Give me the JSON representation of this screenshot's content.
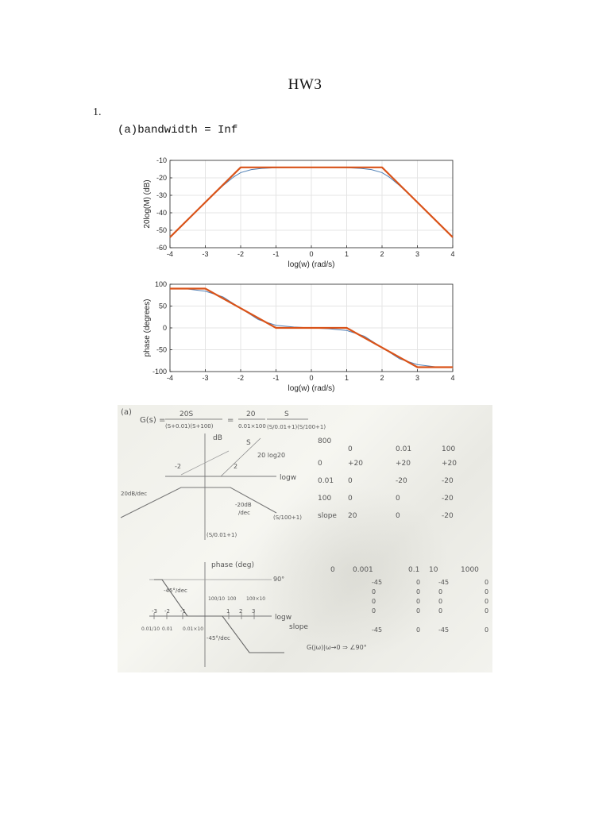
{
  "document": {
    "title": "HW3",
    "question_number": "1.",
    "part_a": "(a)bandwidth = Inf"
  },
  "chart_data": [
    {
      "type": "line",
      "xlabel": "log(w) (rad/s)",
      "ylabel": "20log(M) (dB)",
      "xlim": [
        -4,
        4
      ],
      "ylim": [
        -60,
        -10
      ],
      "xticks": [
        "-4",
        "-3",
        "-2",
        "-1",
        "0",
        "1",
        "2",
        "3",
        "4"
      ],
      "yticks": [
        "-10",
        "-20",
        "-30",
        "-40",
        "-50",
        "-60"
      ],
      "grid": true,
      "colors": {
        "asymptote": "#d95319",
        "exact": "#4f7fb5"
      },
      "series": [
        {
          "x": [
            -4,
            -2,
            2,
            4
          ],
          "y": [
            -54,
            -14,
            -14,
            -54
          ]
        },
        {
          "x": [
            -4,
            -3,
            -2.5,
            -2.2,
            -2,
            -1.7,
            -1.4,
            -1,
            0,
            1,
            1.4,
            1.7,
            2,
            2.2,
            2.5,
            3,
            4
          ],
          "y": [
            -54,
            -34,
            -24.5,
            -19.5,
            -17,
            -15.3,
            -14.6,
            -14.2,
            -14,
            -14.2,
            -14.6,
            -15.3,
            -17,
            -19.5,
            -24.5,
            -34,
            -54
          ]
        }
      ]
    },
    {
      "type": "line",
      "xlabel": "log(w) (rad/s)",
      "ylabel": "phase (degrees)",
      "xlim": [
        -4,
        4
      ],
      "ylim": [
        -100,
        100
      ],
      "xticks": [
        "-4",
        "-3",
        "-2",
        "-1",
        "0",
        "1",
        "2",
        "3",
        "4"
      ],
      "yticks": [
        "100",
        "50",
        "0",
        "-50",
        "-100"
      ],
      "grid": true,
      "colors": {
        "asymptote": "#d95319",
        "exact": "#4f7fb5"
      },
      "series": [
        {
          "x": [
            -4,
            -3,
            -1,
            1,
            3,
            4
          ],
          "y": [
            90,
            90,
            0,
            0,
            -90,
            -90
          ]
        },
        {
          "x": [
            -4,
            -3.5,
            -3,
            -2.5,
            -2,
            -1.5,
            -1,
            -0.5,
            0,
            0.5,
            1,
            1.5,
            2,
            2.5,
            3,
            3.5,
            4
          ],
          "y": [
            90,
            89,
            84,
            71,
            45,
            19,
            6,
            2,
            0,
            -2,
            -6,
            -19,
            -45,
            -71,
            -84,
            -89,
            -90
          ]
        }
      ]
    }
  ],
  "handwritten": {
    "part_label": "(a)",
    "transfer_fn_lhs": "G(s) =",
    "transfer_fn_num1": "20S",
    "transfer_fn_den1": "(S+0.01)(S+100)",
    "transfer_fn_eq": "=",
    "transfer_fn_num2": "20",
    "transfer_fn_den2": "0.01×100",
    "transfer_fn_s": "S",
    "transfer_fn_factors": "(S/0.01+1)(S/100+1)",
    "mag_axis_label": "dB",
    "mag_s_label": "S",
    "mag_20log20": "20 log20",
    "mag_neg2": "-2",
    "mag_2": "2",
    "mag_logw": "logw",
    "mag_20db_dec": "20dB/dec",
    "mag_neg20db": "-20dB",
    "mag_dec": "/dec",
    "mag_factor1": "(S/100+1)",
    "mag_factor2": "(S/0.01+1)",
    "mag_table_header": [
      "800",
      "0",
      "0.01",
      "100"
    ],
    "mag_table_rows": [
      [
        "0",
        "+20",
        "+20",
        "+20"
      ],
      [
        "0.01",
        "0",
        "-20",
        "-20"
      ],
      [
        "100",
        "0",
        "0",
        "-20"
      ],
      [
        "slope",
        "20",
        "0",
        "-20"
      ]
    ],
    "phase_axis_label": "phase (deg)",
    "phase_90": "90°",
    "phase_neg45_1": "-45°/dec",
    "phase_ticks": [
      "-3",
      "-2",
      "-1",
      "1",
      "2",
      "3"
    ],
    "phase_freqs_top": [
      "100/10",
      "100",
      "100×10"
    ],
    "phase_freqs_bottom": [
      "0.01/10",
      "0.01",
      "0.01×10"
    ],
    "phase_logw": "logw",
    "phase_neg45_2": "-45°/dec",
    "phase_table_header": [
      "0",
      "0.001",
      "0.1",
      "10",
      "1000"
    ],
    "phase_table_rows": [
      [
        "-45",
        "0",
        "-45",
        "0"
      ],
      [
        "0",
        "0",
        "0",
        "0"
      ],
      [
        "0",
        "0",
        "0",
        "0"
      ],
      [
        "0",
        "0",
        "0",
        "0"
      ]
    ],
    "phase_slope_label": "slope",
    "phase_slope_values": [
      "-45",
      "0",
      "-45",
      "0"
    ],
    "phase_result": "G(jω)|ω→0 ⇒ ∠90°"
  }
}
